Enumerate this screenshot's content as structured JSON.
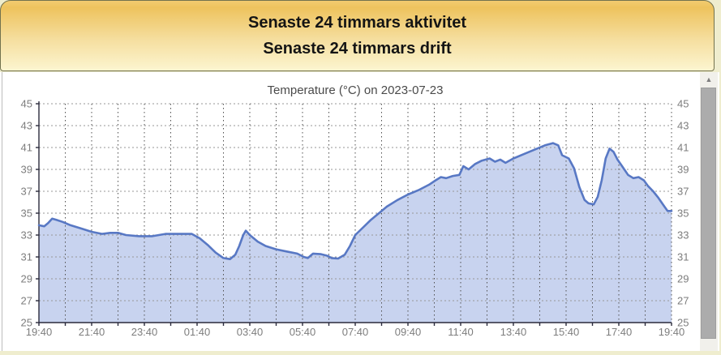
{
  "header": {
    "line1": "Senaste 24 timmars aktivitet",
    "line2": "Senaste 24 timmars drift"
  },
  "chart_data": {
    "type": "area",
    "title": "Temperature (°C) on 2023-07-23",
    "xlabel": "",
    "ylabel": "",
    "ylim": [
      25,
      45
    ],
    "xlim_hours": [
      0,
      24
    ],
    "y_ticks": [
      25,
      27,
      29,
      31,
      33,
      35,
      37,
      39,
      41,
      43,
      45
    ],
    "y_tick_label_sides": "both",
    "x_tick_hours": [
      0,
      2,
      4,
      6,
      8,
      10,
      12,
      14,
      16,
      18,
      20,
      22,
      24
    ],
    "x_tick_labels": [
      "19:40",
      "21:40",
      "23:40",
      "01:40",
      "03:40",
      "05:40",
      "07:40",
      "09:40",
      "11:40",
      "13:40",
      "15:40",
      "17:40",
      "19:40"
    ],
    "grid": {
      "horizontal": "dotted every 2 degC",
      "vertical": "dotted hourly"
    },
    "legend": "none",
    "series": [
      {
        "name": "temperature",
        "x_hours": [
          0,
          0.2,
          0.35,
          0.5,
          0.65,
          0.9,
          1.2,
          1.6,
          2.0,
          2.4,
          2.7,
          3.0,
          3.3,
          3.8,
          4.3,
          4.8,
          5.3,
          5.8,
          6.1,
          6.4,
          6.7,
          7.0,
          7.25,
          7.45,
          7.6,
          7.75,
          7.85,
          8.0,
          8.3,
          8.6,
          9.0,
          9.4,
          9.8,
          10.05,
          10.2,
          10.4,
          10.7,
          10.95,
          11.1,
          11.35,
          11.6,
          11.8,
          12.0,
          12.3,
          12.6,
          12.9,
          13.2,
          13.6,
          14.0,
          14.4,
          14.8,
          15.05,
          15.25,
          15.45,
          15.7,
          15.95,
          16.1,
          16.3,
          16.55,
          16.8,
          17.1,
          17.3,
          17.5,
          17.7,
          18.0,
          18.4,
          18.8,
          19.2,
          19.5,
          19.7,
          19.85,
          20.1,
          20.3,
          20.5,
          20.7,
          20.85,
          21.05,
          21.2,
          21.35,
          21.5,
          21.65,
          21.8,
          21.95,
          22.15,
          22.35,
          22.55,
          22.75,
          22.95,
          23.1,
          23.3,
          23.5,
          23.7,
          23.85,
          24
        ],
        "values": [
          33.9,
          33.8,
          34.1,
          34.5,
          34.4,
          34.2,
          33.9,
          33.6,
          33.3,
          33.1,
          33.2,
          33.2,
          33.0,
          32.9,
          32.9,
          33.1,
          33.1,
          33.1,
          32.7,
          32.1,
          31.4,
          30.9,
          30.8,
          31.2,
          32.0,
          33.0,
          33.4,
          33.0,
          32.4,
          32.0,
          31.7,
          31.5,
          31.3,
          31.0,
          30.9,
          31.3,
          31.25,
          31.1,
          30.9,
          30.85,
          31.2,
          32.0,
          33.0,
          33.7,
          34.4,
          35.0,
          35.6,
          36.2,
          36.7,
          37.1,
          37.6,
          38.0,
          38.3,
          38.2,
          38.4,
          38.5,
          39.3,
          39.0,
          39.5,
          39.8,
          40.0,
          39.7,
          39.9,
          39.6,
          40.0,
          40.4,
          40.8,
          41.2,
          41.4,
          41.2,
          40.3,
          40.0,
          39.1,
          37.4,
          36.2,
          35.9,
          35.8,
          36.5,
          38.0,
          40.0,
          40.9,
          40.6,
          39.9,
          39.2,
          38.5,
          38.2,
          38.3,
          38.0,
          37.5,
          37.0,
          36.4,
          35.7,
          35.2,
          35.2
        ]
      }
    ],
    "colors": {
      "fill": "#C8D3EF",
      "line": "#5878C4",
      "axis": "#2A2A3C",
      "grid_h": "#979797",
      "grid_v": "#4F4F4F",
      "tick_label": "#7D7D7D",
      "title": "#4A4A4A"
    }
  },
  "scrollbar": {
    "up_icon": "▲"
  },
  "theme": {
    "page_bg": "#EFEDCE",
    "panel_bg": "#FFFFFF",
    "header_gradient_top": "#F2CC70",
    "header_gradient_mid": "#F5DE9E",
    "header_gradient_bottom": "#FCF5D0",
    "header_border": "#72724E",
    "header_text": "#141414",
    "scroll_track": "#F1F0EB",
    "scroll_thumb": "#ACACAC",
    "scroll_arrow": "#7E7E7E"
  }
}
